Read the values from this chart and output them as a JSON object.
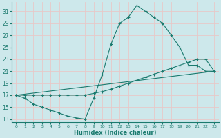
{
  "xlabel": "Humidex (Indice chaleur)",
  "bg_color": "#cde8eb",
  "grid_color": "#e8c8c8",
  "line_color": "#1a7a6e",
  "xlim": [
    -0.5,
    23.5
  ],
  "ylim": [
    12.5,
    32.5
  ],
  "xticks": [
    0,
    1,
    2,
    3,
    4,
    5,
    6,
    7,
    8,
    9,
    10,
    11,
    12,
    13,
    14,
    15,
    16,
    17,
    18,
    19,
    20,
    21,
    22,
    23
  ],
  "yticks": [
    13,
    15,
    17,
    19,
    21,
    23,
    25,
    27,
    29,
    31
  ],
  "line1_x": [
    0,
    1,
    2,
    3,
    4,
    5,
    6,
    7,
    8,
    9,
    10,
    11,
    12,
    13,
    14,
    15,
    16,
    17,
    18,
    19,
    20,
    21,
    22,
    23
  ],
  "line1_y": [
    17,
    16.5,
    15.5,
    15,
    14.5,
    14,
    13.5,
    13.2,
    13,
    16.5,
    20.5,
    25.5,
    29,
    30,
    32,
    31,
    30,
    29,
    27,
    25,
    22,
    22,
    21,
    21
  ],
  "line2_x": [
    0,
    1,
    2,
    3,
    4,
    5,
    6,
    7,
    8,
    9,
    10,
    11,
    12,
    13,
    14,
    15,
    16,
    17,
    18,
    19,
    20,
    21,
    22,
    23
  ],
  "line2_y": [
    17,
    17,
    17,
    17,
    17,
    17,
    17,
    17,
    17,
    17.3,
    17.6,
    18,
    18.5,
    19,
    19.5,
    20,
    20.5,
    21,
    21.5,
    22,
    22.5,
    23,
    23,
    21
  ],
  "line3_x": [
    0,
    23
  ],
  "line3_y": [
    17,
    21
  ]
}
